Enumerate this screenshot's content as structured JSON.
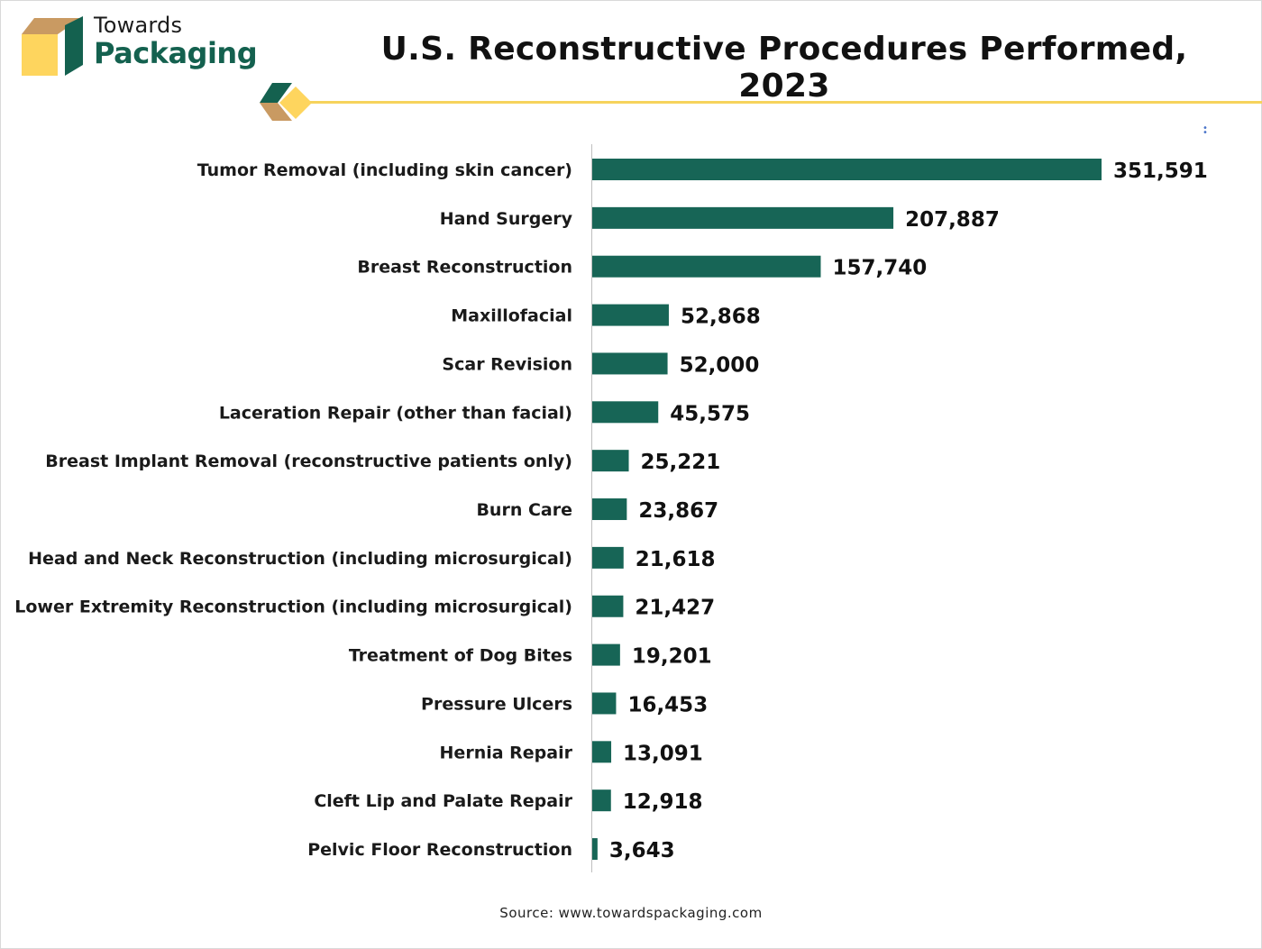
{
  "logo": {
    "line1": "Towards",
    "line2": "Packaging"
  },
  "colors": {
    "bar": "#176556",
    "logo_green": "#14614f",
    "logo_tan": "#c99a62",
    "logo_yellow": "#fed55e",
    "accent_line": "#f6d35c"
  },
  "source": "Source: www.towardspackaging.com",
  "chart_data": {
    "type": "bar",
    "orientation": "horizontal",
    "title": "U.S. Reconstructive Procedures Performed, 2023",
    "xlabel": "",
    "ylabel": "",
    "grid": false,
    "xlim": [
      0,
      351591
    ],
    "categories": [
      "Tumor Removal (including skin cancer)",
      "Hand Surgery",
      "Breast Reconstruction",
      "Maxillofacial",
      "Scar Revision",
      "Laceration Repair (other than facial)",
      "Breast Implant Removal (reconstructive patients only)",
      "Burn Care",
      "Head and Neck Reconstruction (including microsurgical)",
      "Lower Extremity Reconstruction (including microsurgical)",
      "Treatment of Dog Bites",
      "Pressure Ulcers",
      "Hernia Repair",
      "Cleft Lip and Palate Repair",
      "Pelvic Floor Reconstruction"
    ],
    "values": [
      351591,
      207887,
      157740,
      52868,
      52000,
      45575,
      25221,
      23867,
      21618,
      21427,
      19201,
      16453,
      13091,
      12918,
      3643
    ],
    "value_labels": [
      "351,591",
      "207,887",
      "157,740",
      "52,868",
      "52,000",
      "45,575",
      "25,221",
      "23,867",
      "21,618",
      "21,427",
      "19,201",
      "16,453",
      "13,091",
      "12,918",
      "3,643"
    ]
  }
}
